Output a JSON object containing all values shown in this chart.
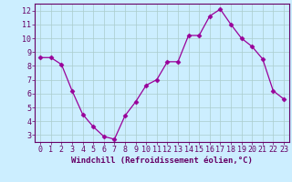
{
  "x": [
    0,
    1,
    2,
    3,
    4,
    5,
    6,
    7,
    8,
    9,
    10,
    11,
    12,
    13,
    14,
    15,
    16,
    17,
    18,
    19,
    20,
    21,
    22,
    23
  ],
  "y": [
    8.6,
    8.6,
    8.1,
    6.2,
    4.5,
    3.6,
    2.9,
    2.7,
    4.4,
    5.4,
    6.6,
    7.0,
    8.3,
    8.3,
    10.2,
    10.2,
    11.6,
    12.1,
    11.0,
    10.0,
    9.4,
    8.5,
    6.2,
    5.6
  ],
  "line_color": "#990099",
  "marker": "D",
  "marker_size": 2.5,
  "bg_color": "#cceeff",
  "grid_color": "#aacccc",
  "xlabel": "Windchill (Refroidissement éolien,°C)",
  "xlim": [
    -0.5,
    23.5
  ],
  "ylim": [
    2.5,
    12.5
  ],
  "xticks": [
    0,
    1,
    2,
    3,
    4,
    5,
    6,
    7,
    8,
    9,
    10,
    11,
    12,
    13,
    14,
    15,
    16,
    17,
    18,
    19,
    20,
    21,
    22,
    23
  ],
  "yticks": [
    3,
    4,
    5,
    6,
    7,
    8,
    9,
    10,
    11,
    12
  ],
  "axis_color": "#660066",
  "label_color": "#660066",
  "tick_color": "#660066",
  "font_size_xlabel": 6.5,
  "font_size_tick": 6.0
}
